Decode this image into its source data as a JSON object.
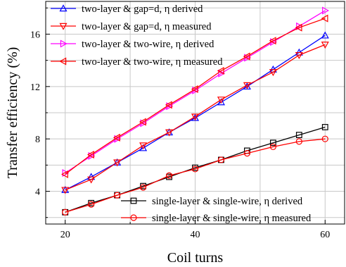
{
  "chart_data": {
    "type": "line",
    "xlabel": "Coil turns",
    "ylabel": "Transfer efficiency (%)",
    "xlim": [
      17,
      63
    ],
    "ylim": [
      1.5,
      18.5
    ],
    "xticks": [
      "20",
      "40",
      "60"
    ],
    "yticks": [
      "4",
      "8",
      "12",
      "16"
    ],
    "grid": true,
    "x": [
      20,
      24,
      28,
      32,
      36,
      40,
      44,
      48,
      52,
      56,
      60
    ],
    "legends": [
      {
        "position": "top-left",
        "series": [
          0,
          1,
          2,
          3
        ]
      },
      {
        "position": "bottom-right",
        "series": [
          4,
          5
        ]
      }
    ],
    "series": [
      {
        "name": "two-layer & gap=d, η derived",
        "color": "#0000ff",
        "marker": "triangle-up",
        "values": [
          4.1,
          5.1,
          6.2,
          7.3,
          8.5,
          9.6,
          10.8,
          12.0,
          13.3,
          14.6,
          15.9
        ]
      },
      {
        "name": "two-layer & gap=d, η measured",
        "color": "#ff0000",
        "marker": "triangle-down",
        "values": [
          4.1,
          4.9,
          6.2,
          7.5,
          8.5,
          9.7,
          11.0,
          12.1,
          13.1,
          14.4,
          15.2
        ]
      },
      {
        "name": "two-layer & two-wire, η derived",
        "color": "#ff00ff",
        "marker": "triangle-right",
        "values": [
          5.4,
          6.7,
          8.0,
          9.2,
          10.5,
          11.7,
          13.0,
          14.2,
          15.4,
          16.6,
          17.8
        ]
      },
      {
        "name": "two-layer & two-wire, η measured",
        "color": "#ff0000",
        "marker": "triangle-left",
        "values": [
          5.3,
          6.8,
          8.1,
          9.3,
          10.6,
          11.8,
          13.2,
          14.3,
          15.5,
          16.5,
          17.2
        ]
      },
      {
        "name": "single-layer & single-wire, η derived",
        "color": "#000000",
        "marker": "square",
        "values": [
          2.4,
          3.1,
          3.7,
          4.4,
          5.1,
          5.8,
          6.4,
          7.1,
          7.7,
          8.3,
          8.9
        ]
      },
      {
        "name": "single-layer & single-wire, η measured",
        "color": "#ff0000",
        "marker": "circle",
        "values": [
          2.4,
          3.0,
          3.7,
          4.3,
          5.2,
          5.7,
          6.4,
          6.9,
          7.4,
          7.8,
          8.0
        ]
      }
    ]
  }
}
